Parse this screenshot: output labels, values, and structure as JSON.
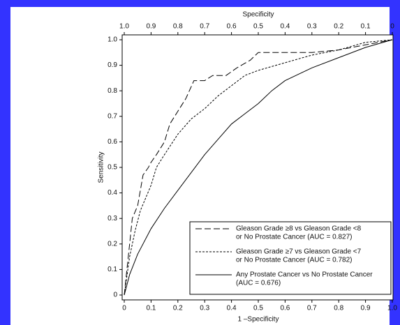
{
  "chart_data": {
    "type": "line",
    "xlabel": "1 –Specificity",
    "ylabel": "Sensitivity",
    "x2label": "Specificity",
    "xlim": [
      0,
      1
    ],
    "ylim": [
      0,
      1
    ],
    "x2lim": [
      1,
      0
    ],
    "xticks": [
      0,
      0.1,
      0.2,
      0.3,
      0.4,
      0.5,
      0.6,
      0.7,
      0.8,
      0.9,
      {
        "value": 1,
        "label": "1.0"
      }
    ],
    "yticks": [
      0,
      0.1,
      0.2,
      0.3,
      0.4,
      0.5,
      0.6,
      0.7,
      0.8,
      0.9,
      {
        "value": 1,
        "label": "1.0"
      }
    ],
    "x2ticks": [
      {
        "value": 1,
        "label": "1.0"
      },
      0.9,
      0.8,
      0.7,
      0.6,
      0.5,
      0.4,
      0.3,
      0.2,
      0.1,
      0
    ],
    "series": [
      {
        "name": [
          "Gleason Grade ≥8 vs Gleason Grade <8",
          "or No Prostate Cancer (AUC = 0.827)"
        ],
        "color": "#000000",
        "dash": "long",
        "x": [
          0,
          0.01,
          0.02,
          0.03,
          0.05,
          0.07,
          0.09,
          0.1,
          0.12,
          0.15,
          0.17,
          0.2,
          0.23,
          0.26,
          0.3,
          0.33,
          0.38,
          0.42,
          0.47,
          0.5,
          0.7,
          0.8,
          0.9,
          1
        ],
        "values": [
          0,
          0.1,
          0.2,
          0.3,
          0.35,
          0.47,
          0.5,
          0.52,
          0.55,
          0.6,
          0.67,
          0.72,
          0.77,
          0.84,
          0.84,
          0.86,
          0.86,
          0.89,
          0.92,
          0.95,
          0.95,
          0.96,
          0.98,
          1
        ]
      },
      {
        "name": [
          "Gleason Grade ≥7 vs Gleason Grade <7",
          "or No Prostate Cancer (AUC = 0.782)"
        ],
        "color": "#000000",
        "dash": "short",
        "x": [
          0,
          0.02,
          0.04,
          0.06,
          0.08,
          0.1,
          0.12,
          0.15,
          0.2,
          0.25,
          0.3,
          0.35,
          0.4,
          0.45,
          0.5,
          0.6,
          0.7,
          0.8,
          0.9,
          1
        ],
        "values": [
          0,
          0.15,
          0.25,
          0.33,
          0.38,
          0.43,
          0.5,
          0.55,
          0.63,
          0.69,
          0.73,
          0.78,
          0.82,
          0.86,
          0.88,
          0.91,
          0.94,
          0.96,
          0.99,
          1
        ]
      },
      {
        "name": [
          "Any Prostate Cancer vs No Prostate Cancer",
          "(AUC = 0.676)"
        ],
        "color": "#000000",
        "dash": "solid",
        "x": [
          0,
          0.02,
          0.05,
          0.1,
          0.15,
          0.2,
          0.25,
          0.3,
          0.35,
          0.4,
          0.45,
          0.5,
          0.55,
          0.6,
          0.7,
          0.8,
          0.9,
          1
        ],
        "values": [
          0,
          0.08,
          0.16,
          0.26,
          0.34,
          0.41,
          0.48,
          0.55,
          0.61,
          0.67,
          0.71,
          0.75,
          0.8,
          0.84,
          0.89,
          0.93,
          0.97,
          1
        ]
      }
    ]
  }
}
